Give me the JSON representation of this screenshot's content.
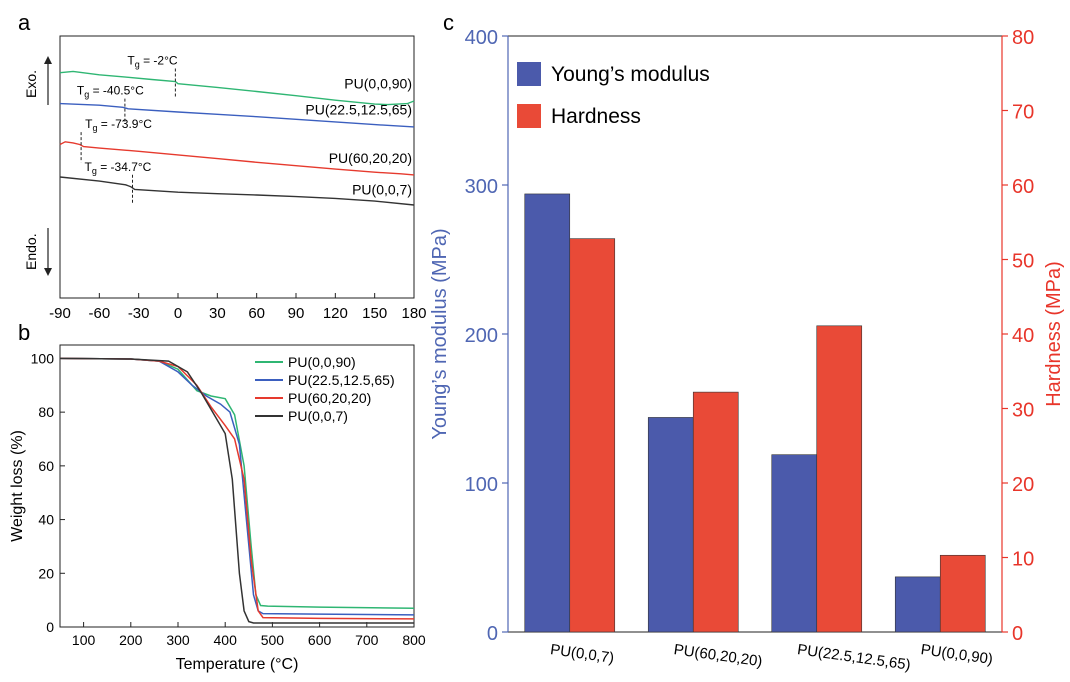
{
  "chart_data": [
    {
      "panel": "a",
      "type": "line",
      "xlabel": "",
      "ylabel": "",
      "xlim": [
        -90,
        180
      ],
      "xticks": [
        -90,
        -60,
        -30,
        0,
        30,
        60,
        90,
        120,
        150,
        180
      ],
      "exo_label": "Exo.",
      "endo_label": "Endo.",
      "series": [
        {
          "name": "PU(0,0,90)",
          "color": "#2fb673",
          "tg_label": "-2°C",
          "tg": -2,
          "x": [
            -90,
            -80,
            -60,
            -40,
            -20,
            -2,
            0,
            30,
            60,
            90,
            120,
            150,
            160,
            175,
            180
          ],
          "y": [
            0.86,
            0.865,
            0.852,
            0.843,
            0.834,
            0.826,
            0.818,
            0.804,
            0.788,
            0.772,
            0.755,
            0.74,
            0.738,
            0.742,
            0.752
          ]
        },
        {
          "name": "PU(22.5,12.5,65)",
          "color": "#3b5fbf",
          "tg_label": "-40.5°C",
          "tg": -40.5,
          "x": [
            -90,
            -60,
            -42,
            -38,
            0,
            30,
            60,
            90,
            120,
            150,
            180
          ],
          "y": [
            0.742,
            0.736,
            0.728,
            0.722,
            0.71,
            0.701,
            0.692,
            0.682,
            0.672,
            0.662,
            0.653
          ]
        },
        {
          "name": "PU(60,20,20)",
          "color": "#e63a2e",
          "tg_label": "-73.9°C",
          "tg": -73.9,
          "x": [
            -90,
            -86,
            -80,
            -75,
            -72,
            -60,
            -30,
            0,
            30,
            60,
            90,
            120,
            150,
            170,
            180
          ],
          "y": [
            0.586,
            0.596,
            0.592,
            0.586,
            0.578,
            0.572,
            0.56,
            0.546,
            0.532,
            0.518,
            0.505,
            0.492,
            0.48,
            0.474,
            0.47
          ]
        },
        {
          "name": "PU(0,0,7)",
          "color": "#333333",
          "tg_label": "-34.7°C",
          "tg": -34.7,
          "x": [
            -90,
            -60,
            -40,
            -36,
            -33,
            0,
            30,
            60,
            90,
            120,
            150,
            180
          ],
          "y": [
            0.462,
            0.446,
            0.432,
            0.425,
            0.414,
            0.404,
            0.398,
            0.393,
            0.387,
            0.38,
            0.37,
            0.355
          ]
        }
      ],
      "tg_prefix": "T",
      "tg_sub": "g",
      "tg_eq": " = "
    },
    {
      "panel": "b",
      "type": "line",
      "xlabel": "Temperature (°C)",
      "ylabel": "Weight loss (%)",
      "xlim": [
        50,
        800
      ],
      "ylim": [
        0,
        105
      ],
      "xticks": [
        100,
        200,
        300,
        400,
        500,
        600,
        700,
        800
      ],
      "yticks": [
        0,
        20,
        40,
        60,
        80,
        100
      ],
      "legend": "top-right",
      "series": [
        {
          "name": "PU(0,0,90)",
          "color": "#2fb673",
          "x": [
            50,
            200,
            260,
            300,
            340,
            370,
            400,
            420,
            440,
            455,
            465,
            475,
            490,
            600,
            800
          ],
          "y": [
            100,
            99.8,
            99,
            96,
            88,
            86,
            85,
            79,
            60,
            30,
            12,
            8,
            7.8,
            7.4,
            7
          ]
        },
        {
          "name": "PU(22.5,12.5,65)",
          "color": "#3b5fbf",
          "x": [
            50,
            200,
            260,
            300,
            330,
            360,
            390,
            410,
            430,
            445,
            460,
            470,
            480,
            600,
            800
          ],
          "y": [
            100,
            99.8,
            99,
            95,
            90,
            86,
            83,
            80,
            68,
            40,
            12,
            6,
            5,
            4.8,
            4.5
          ]
        },
        {
          "name": "PU(60,20,20)",
          "color": "#e63a2e",
          "x": [
            50,
            200,
            260,
            300,
            340,
            370,
            400,
            420,
            440,
            455,
            470,
            480,
            600,
            800
          ],
          "y": [
            100,
            99.8,
            99,
            97,
            90,
            82,
            75,
            70,
            55,
            25,
            6,
            3.5,
            3.2,
            3
          ]
        },
        {
          "name": "PU(0,0,7)",
          "color": "#333333",
          "x": [
            50,
            200,
            280,
            320,
            350,
            380,
            400,
            415,
            430,
            440,
            450,
            460,
            800
          ],
          "y": [
            100,
            99.8,
            99,
            95,
            87,
            78,
            72,
            55,
            20,
            6,
            2,
            1.5,
            1.5
          ]
        }
      ]
    },
    {
      "panel": "c",
      "type": "bar",
      "categories": [
        "PU(0,0,7)",
        "PU(60,20,20)",
        "PU(22.5,12.5,65)",
        "PU(0,0,90)"
      ],
      "ylabel": "Young’s modulus (MPa)",
      "ylabel_right": "Hardness (MPa)",
      "ylim": [
        0,
        400
      ],
      "ylim_right": [
        0,
        80
      ],
      "yticks": [
        0,
        100,
        200,
        300,
        400
      ],
      "yticks_right": [
        0,
        10,
        20,
        30,
        40,
        50,
        60,
        70,
        80
      ],
      "legend": "top-left",
      "series": [
        {
          "name": "Young’s modulus",
          "color": "#4b5aab",
          "axis": "left",
          "values": [
            294,
            144,
            119,
            37
          ]
        },
        {
          "name": "Hardness",
          "color": "#e94a37",
          "axis": "right",
          "values": [
            52.8,
            32.2,
            41.1,
            10.3
          ]
        }
      ],
      "left_axis_color": "#4f66b3",
      "right_axis_color": "#e8352a"
    }
  ]
}
